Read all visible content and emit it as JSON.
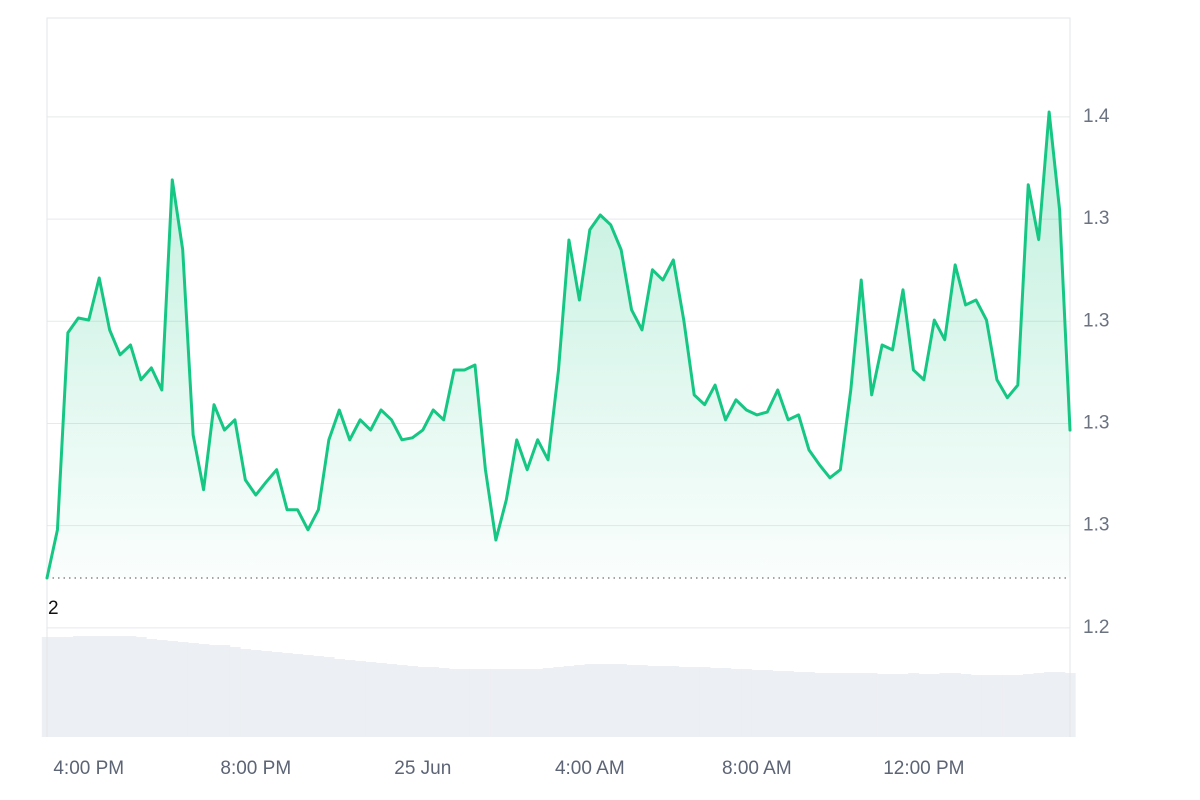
{
  "chart_data": {
    "type": "line",
    "categories": [
      null,
      null,
      null,
      null,
      "4:00 PM",
      null,
      null,
      null,
      null,
      null,
      null,
      null,
      null,
      null,
      null,
      null,
      null,
      null,
      null,
      null,
      "8:00 PM",
      null,
      null,
      null,
      null,
      null,
      null,
      null,
      null,
      null,
      null,
      null,
      null,
      null,
      null,
      null,
      "25 Jun",
      null,
      null,
      null,
      null,
      null,
      null,
      null,
      null,
      null,
      null,
      null,
      null,
      null,
      null,
      null,
      "4:00 AM",
      null,
      null,
      null,
      null,
      null,
      null,
      null,
      null,
      null,
      null,
      null,
      null,
      null,
      null,
      null,
      "8:00 AM",
      null,
      null,
      null,
      null,
      null,
      null,
      null,
      null,
      null,
      null,
      null,
      null,
      null,
      null,
      null,
      "12:00 PM",
      null,
      null,
      null,
      null,
      null,
      null,
      null,
      null,
      null,
      null,
      null,
      null,
      null,
      null
    ],
    "series": [
      {
        "color": "#16c784",
        "values": [
          1.2472,
          1.259,
          1.3072,
          1.3108,
          1.3103,
          1.3206,
          1.3079,
          1.3018,
          1.3042,
          1.2957,
          1.2986,
          1.2932,
          1.3446,
          1.3275,
          1.2822,
          1.2688,
          1.2896,
          1.2834,
          1.2859,
          1.2712,
          1.2675,
          1.2707,
          1.2737,
          1.2639,
          1.2639,
          1.259,
          1.2639,
          1.281,
          1.2883,
          1.281,
          1.2859,
          1.2834,
          1.2883,
          1.2859,
          1.281,
          1.2815,
          1.2834,
          1.2883,
          1.2859,
          1.2981,
          1.2981,
          1.2993,
          1.2737,
          1.2565,
          1.2663,
          1.281,
          1.2737,
          1.281,
          1.2761,
          1.2981,
          1.3299,
          1.3152,
          1.3324,
          1.336,
          1.3336,
          1.3275,
          1.3128,
          1.3079,
          1.3226,
          1.3201,
          1.325,
          1.3103,
          1.292,
          1.2896,
          1.2944,
          1.2859,
          1.2908,
          1.2883,
          1.2871,
          1.2878,
          1.2932,
          1.2859,
          1.2871,
          1.2785,
          1.2749,
          1.2717,
          1.2737,
          1.2932,
          1.3201,
          1.292,
          1.3042,
          1.303,
          1.3177,
          1.2981,
          1.2957,
          1.3103,
          1.3055,
          1.3238,
          1.314,
          1.3152,
          1.3103,
          1.2957,
          1.2913,
          1.2944,
          1.3434,
          1.33,
          1.3612,
          1.3373,
          1.2834
        ]
      }
    ],
    "volume": {
      "color": "#eceff3",
      "vlim": [
        0,
        150
      ],
      "values": [
        100,
        100,
        100,
        101,
        101,
        101,
        101,
        101,
        101,
        100,
        98,
        97,
        96,
        95,
        94,
        93,
        92,
        92,
        90,
        88,
        87,
        86,
        85,
        84,
        83,
        82,
        81,
        80,
        78,
        77,
        76,
        75,
        74,
        73,
        72,
        71,
        70,
        70,
        69,
        68,
        68,
        68,
        68,
        68,
        68,
        68,
        68,
        68,
        69,
        70,
        71,
        72,
        73,
        73,
        73,
        73,
        72,
        72,
        71,
        71,
        71,
        70,
        70,
        70,
        69,
        69,
        68,
        68,
        67,
        67,
        66,
        66,
        65,
        65,
        64,
        64,
        64,
        64,
        64,
        64,
        63,
        63,
        63,
        64,
        63,
        63,
        64,
        64,
        63,
        62,
        62,
        62,
        62,
        62,
        63,
        64,
        65,
        65,
        64
      ]
    },
    "baseline": 1.2472,
    "annotation": "2",
    "ylim": [
      1.2083,
      1.3842
    ],
    "yticks": [
      {
        "value": 1.36,
        "label": "1.4"
      },
      {
        "value": 1.335,
        "label": "1.3"
      },
      {
        "value": 1.31,
        "label": "1.3"
      },
      {
        "value": 1.285,
        "label": "1.3"
      },
      {
        "value": 1.26,
        "label": "1.3"
      },
      {
        "value": 1.235,
        "label": "1.2"
      }
    ],
    "grid": true
  }
}
